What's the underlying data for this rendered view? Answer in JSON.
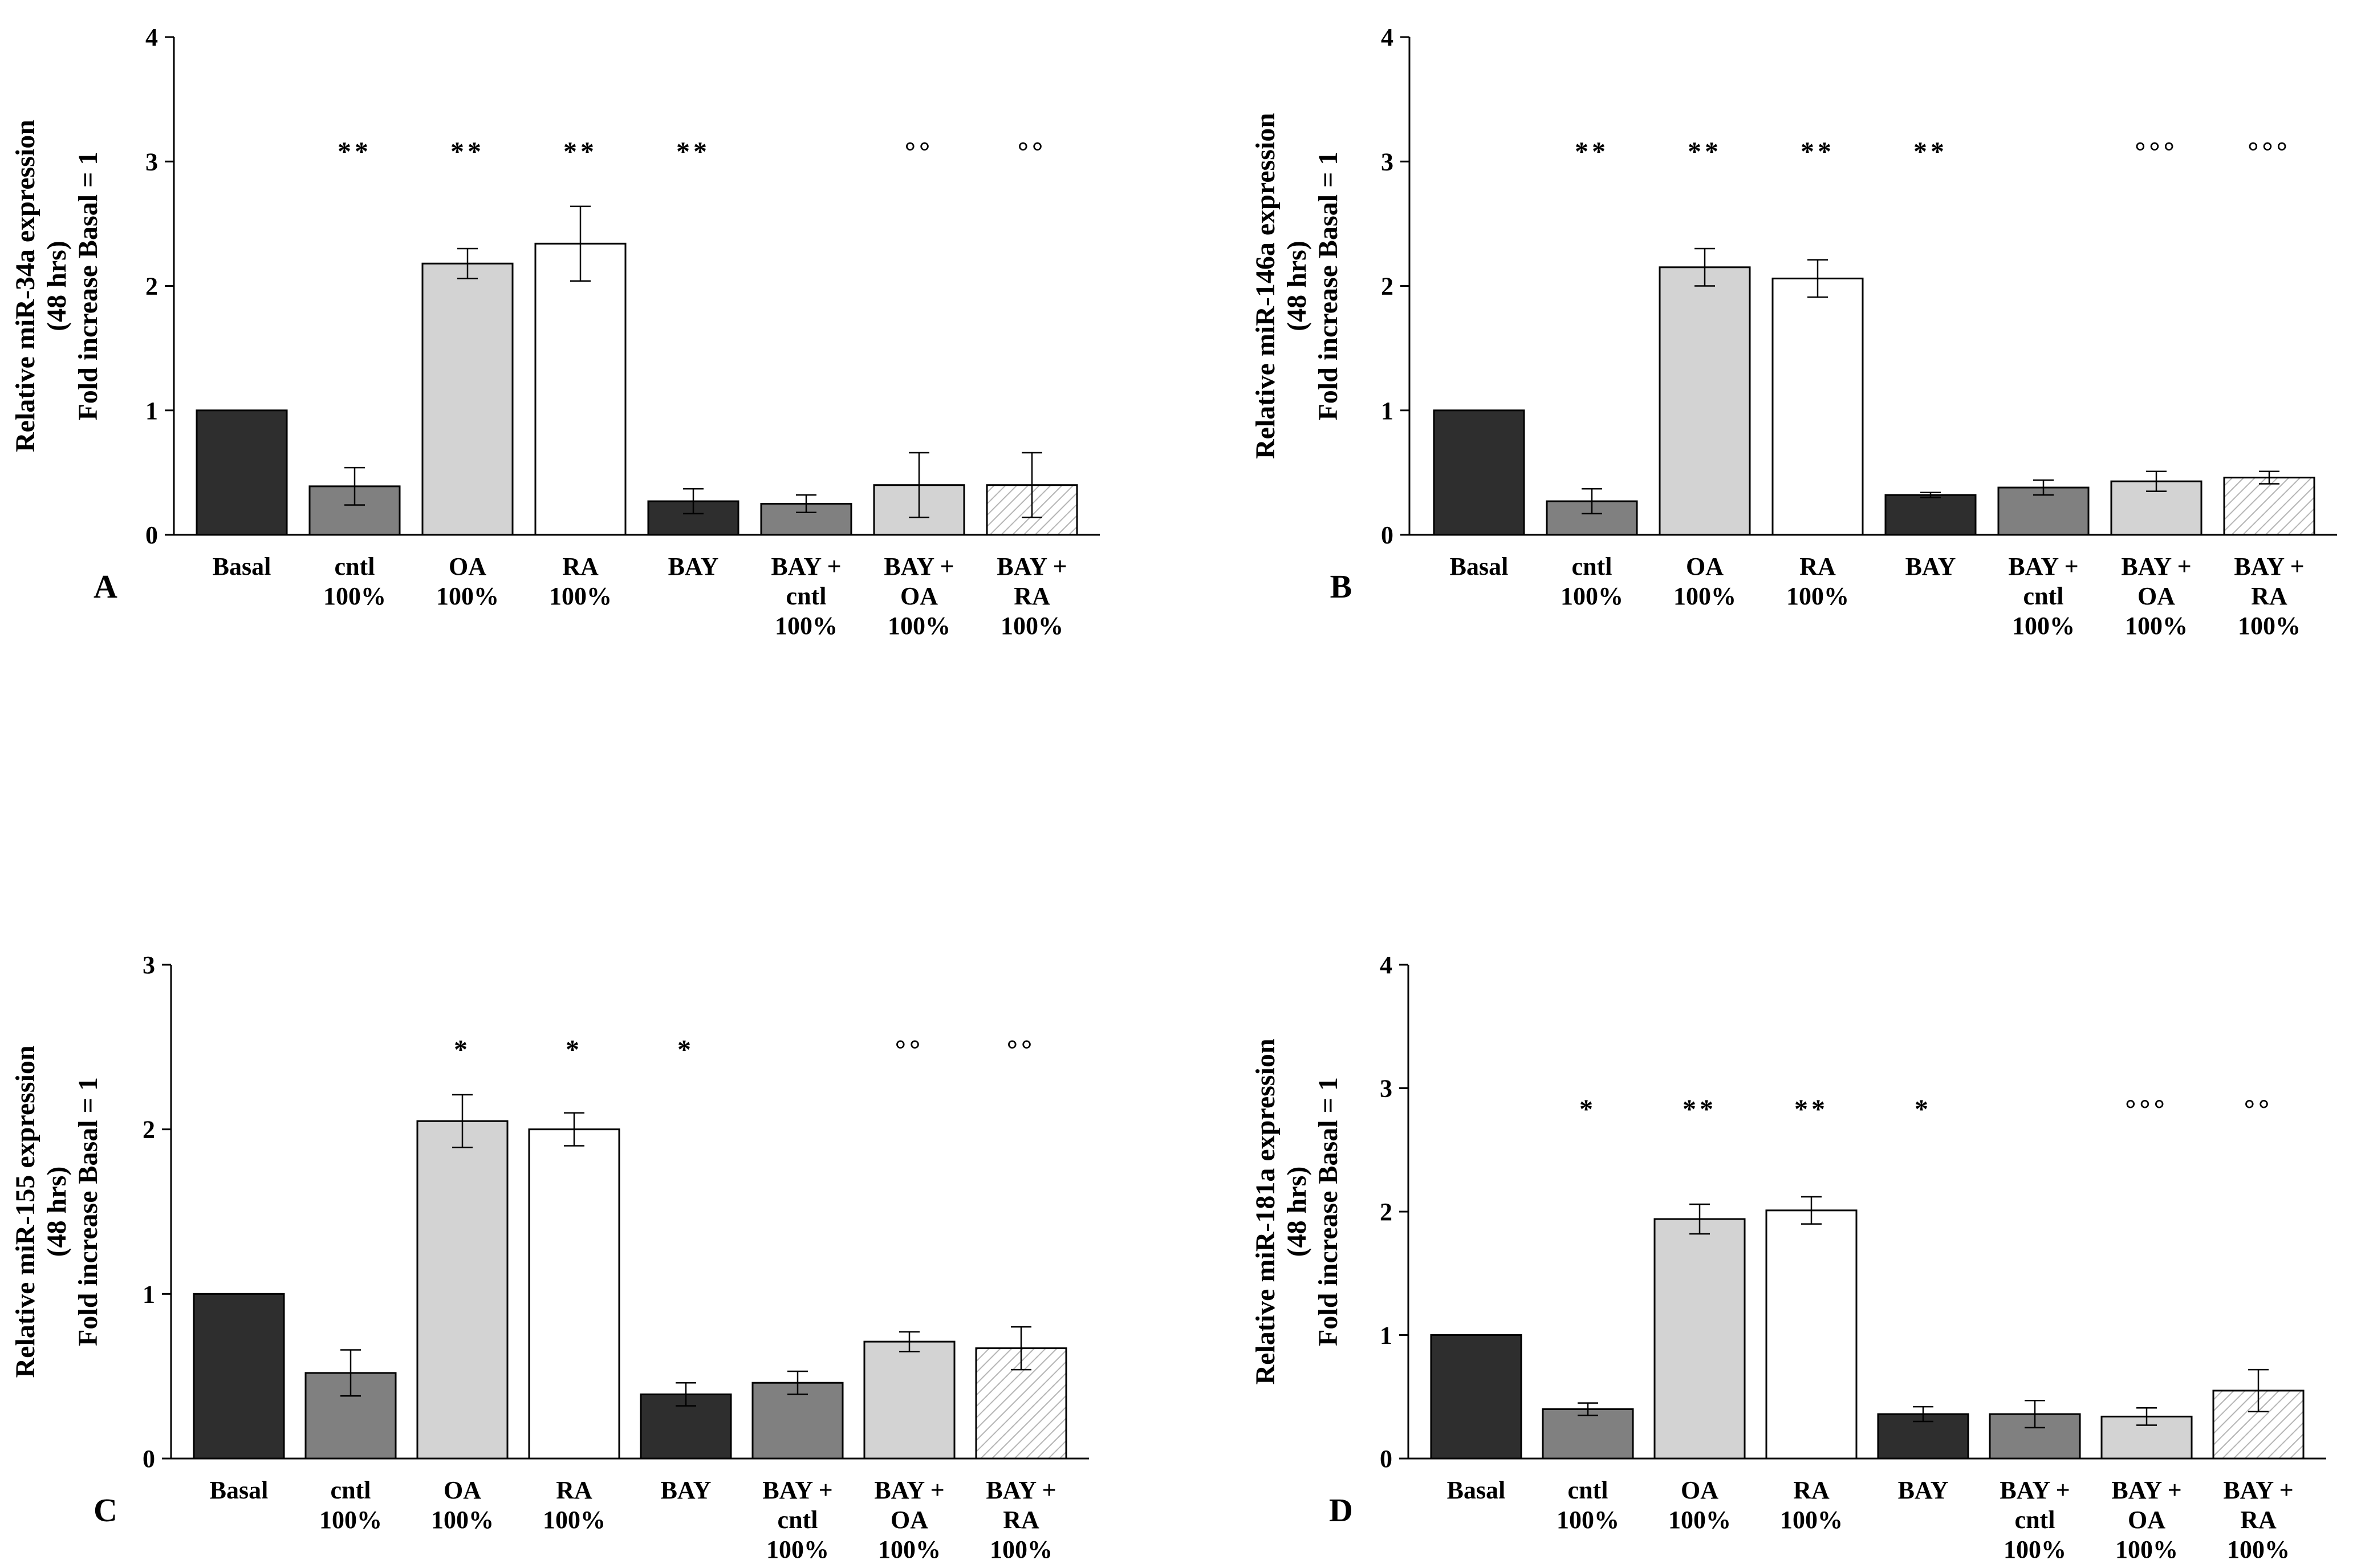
{
  "colors": {
    "basal": "#2e2e2e",
    "cntl": "#808080",
    "oa": "#d3d3d3",
    "ra": "#ffffff",
    "bay": "#2e2e2e",
    "bay_cntl": "#808080",
    "bay_oa": "#d3d3d3",
    "bay_ra": "hatch"
  },
  "chart_data": [
    {
      "type": "bar",
      "panel_label": "A",
      "ylabel_lines": [
        "Relative miR-34a expression",
        "(48 hrs)",
        "Fold increase Basal = 1"
      ],
      "ylim": [
        0,
        4
      ],
      "yticks": [
        "0",
        "1",
        "2",
        "3",
        "4"
      ],
      "categories": [
        [
          "Basal"
        ],
        [
          "cntl",
          "100%"
        ],
        [
          "OA",
          "100%"
        ],
        [
          "RA",
          "100%"
        ],
        [
          "BAY"
        ],
        [
          "BAY +",
          "cntl",
          "100%"
        ],
        [
          "BAY +",
          "OA",
          "100%"
        ],
        [
          "BAY +",
          "RA",
          "100%"
        ]
      ],
      "values": [
        1.0,
        0.39,
        2.18,
        2.34,
        0.27,
        0.25,
        0.4,
        0.4
      ],
      "errors": [
        0,
        0.15,
        0.12,
        0.3,
        0.1,
        0.07,
        0.26,
        0.26
      ],
      "significance": [
        "",
        "**",
        "**",
        "**",
        "**",
        "",
        "°°",
        "°°"
      ],
      "sig_level": 3.1
    },
    {
      "type": "bar",
      "panel_label": "B",
      "ylabel_lines": [
        "Relative miR-146a expression",
        "(48 hrs)",
        "Fold increase Basal = 1"
      ],
      "ylim": [
        0,
        4
      ],
      "yticks": [
        "0",
        "1",
        "2",
        "3",
        "4"
      ],
      "categories": [
        [
          "Basal"
        ],
        [
          "cntl",
          "100%"
        ],
        [
          "OA",
          "100%"
        ],
        [
          "RA",
          "100%"
        ],
        [
          "BAY"
        ],
        [
          "BAY +",
          "cntl",
          "100%"
        ],
        [
          "BAY +",
          "OA",
          "100%"
        ],
        [
          "BAY +",
          "RA",
          "100%"
        ]
      ],
      "values": [
        1.0,
        0.27,
        2.15,
        2.06,
        0.32,
        0.38,
        0.43,
        0.46
      ],
      "errors": [
        0,
        0.1,
        0.15,
        0.15,
        0.02,
        0.06,
        0.08,
        0.05
      ],
      "significance": [
        "",
        "**",
        "**",
        "**",
        "**",
        "",
        "°°°",
        "°°°"
      ],
      "sig_level": 3.1
    },
    {
      "type": "bar",
      "panel_label": "C",
      "ylabel_lines": [
        "Relative miR-155 expression",
        "(48 hrs)",
        "Fold increase Basal = 1"
      ],
      "ylim": [
        0,
        3
      ],
      "yticks": [
        "0",
        "1",
        "2",
        "3"
      ],
      "categories": [
        [
          "Basal"
        ],
        [
          "cntl",
          "100%"
        ],
        [
          "OA",
          "100%"
        ],
        [
          "RA",
          "100%"
        ],
        [
          "BAY"
        ],
        [
          "BAY +",
          "cntl",
          "100%"
        ],
        [
          "BAY +",
          "OA",
          "100%"
        ],
        [
          "BAY +",
          "RA",
          "100%"
        ]
      ],
      "values": [
        1.0,
        0.52,
        2.05,
        2.0,
        0.39,
        0.46,
        0.71,
        0.67
      ],
      "errors": [
        0,
        0.14,
        0.16,
        0.1,
        0.07,
        0.07,
        0.06,
        0.13
      ],
      "significance": [
        "",
        "",
        "*",
        "*",
        "*",
        "",
        "°°",
        "°°"
      ],
      "sig_level": 2.5
    },
    {
      "type": "bar",
      "panel_label": "D",
      "ylabel_lines": [
        "Relative miR-181a expression",
        "(48 hrs)",
        "Fold increase Basal = 1"
      ],
      "ylim": [
        0,
        4
      ],
      "yticks": [
        "0",
        "1",
        "2",
        "3",
        "4"
      ],
      "categories": [
        [
          "Basal"
        ],
        [
          "cntl",
          "100%"
        ],
        [
          "OA",
          "100%"
        ],
        [
          "RA",
          "100%"
        ],
        [
          "BAY"
        ],
        [
          "BAY +",
          "cntl",
          "100%"
        ],
        [
          "BAY +",
          "OA",
          "100%"
        ],
        [
          "BAY +",
          "RA",
          "100%"
        ]
      ],
      "values": [
        1.0,
        0.4,
        1.94,
        2.01,
        0.36,
        0.36,
        0.34,
        0.55
      ],
      "errors": [
        0,
        0.05,
        0.12,
        0.11,
        0.06,
        0.11,
        0.07,
        0.17
      ],
      "significance": [
        "",
        "*",
        "**",
        "**",
        "*",
        "",
        "°°°",
        "°°"
      ],
      "sig_level": 2.85
    }
  ]
}
